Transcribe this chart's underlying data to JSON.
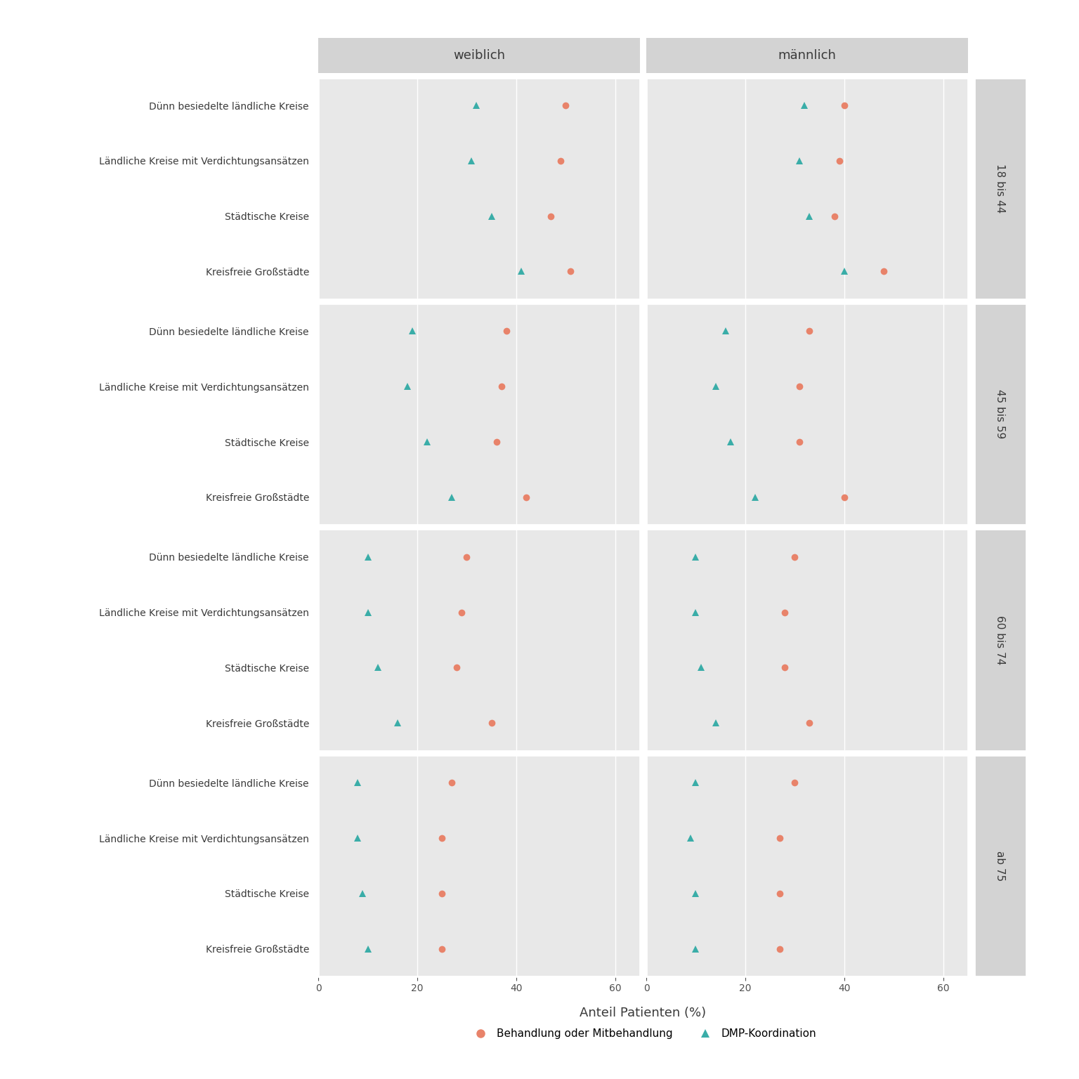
{
  "xlabel": "Anteil Patienten (%)",
  "col_labels": [
    "weiblich",
    "männlich"
  ],
  "row_labels": [
    "18 bis 44",
    "45 bis 59",
    "60 bis 74",
    "ab 75"
  ],
  "region_types": [
    "Dünn besiedelte ländliche Kreise",
    "Ländliche Kreise mit Verdichtungsansätzen",
    "Städtische Kreise",
    "Kreisfreie Großstädte"
  ],
  "background_panel": "#e8e8e8",
  "background_header": "#d3d3d3",
  "background_strip_right": "#d3d3d3",
  "color_behandlung": "#E8836A",
  "color_koordination": "#3AADA8",
  "xlim": [
    0,
    65
  ],
  "xticks": [
    0,
    20,
    40,
    60
  ],
  "data": {
    "18 bis 44": {
      "weiblich": {
        "Dünn besiedelte ländliche Kreise": {
          "behandlung": 50,
          "koordination": 32
        },
        "Ländliche Kreise mit Verdichtungsansätzen": {
          "behandlung": 49,
          "koordination": 31
        },
        "Städtische Kreise": {
          "behandlung": 47,
          "koordination": 35
        },
        "Kreisfreie Großstädte": {
          "behandlung": 51,
          "koordination": 41
        }
      },
      "männlich": {
        "Dünn besiedelte ländliche Kreise": {
          "behandlung": 40,
          "koordination": 32
        },
        "Ländliche Kreise mit Verdichtungsansätzen": {
          "behandlung": 39,
          "koordination": 31
        },
        "Städtische Kreise": {
          "behandlung": 38,
          "koordination": 33
        },
        "Kreisfreie Großstädte": {
          "behandlung": 48,
          "koordination": 40
        }
      }
    },
    "45 bis 59": {
      "weiblich": {
        "Dünn besiedelte ländliche Kreise": {
          "behandlung": 38,
          "koordination": 19
        },
        "Ländliche Kreise mit Verdichtungsansätzen": {
          "behandlung": 37,
          "koordination": 18
        },
        "Städtische Kreise": {
          "behandlung": 36,
          "koordination": 22
        },
        "Kreisfreie Großstädte": {
          "behandlung": 42,
          "koordination": 27
        }
      },
      "männlich": {
        "Dünn besiedelte ländliche Kreise": {
          "behandlung": 33,
          "koordination": 16
        },
        "Ländliche Kreise mit Verdichtungsansätzen": {
          "behandlung": 31,
          "koordination": 14
        },
        "Städtische Kreise": {
          "behandlung": 31,
          "koordination": 17
        },
        "Kreisfreie Großstädte": {
          "behandlung": 40,
          "koordination": 22
        }
      }
    },
    "60 bis 74": {
      "weiblich": {
        "Dünn besiedelte ländliche Kreise": {
          "behandlung": 30,
          "koordination": 10
        },
        "Ländliche Kreise mit Verdichtungsansätzen": {
          "behandlung": 29,
          "koordination": 10
        },
        "Städtische Kreise": {
          "behandlung": 28,
          "koordination": 12
        },
        "Kreisfreie Großstädte": {
          "behandlung": 35,
          "koordination": 16
        }
      },
      "männlich": {
        "Dünn besiedelte ländliche Kreise": {
          "behandlung": 30,
          "koordination": 10
        },
        "Ländliche Kreise mit Verdichtungsansätzen": {
          "behandlung": 28,
          "koordination": 10
        },
        "Städtische Kreise": {
          "behandlung": 28,
          "koordination": 11
        },
        "Kreisfreie Großstädte": {
          "behandlung": 33,
          "koordination": 14
        }
      }
    },
    "ab 75": {
      "weiblich": {
        "Dünn besiedelte ländliche Kreise": {
          "behandlung": 27,
          "koordination": 8
        },
        "Ländliche Kreise mit Verdichtungsansätzen": {
          "behandlung": 25,
          "koordination": 8
        },
        "Städtische Kreise": {
          "behandlung": 25,
          "koordination": 9
        },
        "Kreisfreie Großstädte": {
          "behandlung": 25,
          "koordination": 10
        }
      },
      "männlich": {
        "Dünn besiedelte ländliche Kreise": {
          "behandlung": 30,
          "koordination": 10
        },
        "Ländliche Kreise mit Verdichtungsansätzen": {
          "behandlung": 27,
          "koordination": 9
        },
        "Städtische Kreise": {
          "behandlung": 27,
          "koordination": 10
        },
        "Kreisfreie Großstädte": {
          "behandlung": 27,
          "koordination": 10
        }
      }
    }
  }
}
